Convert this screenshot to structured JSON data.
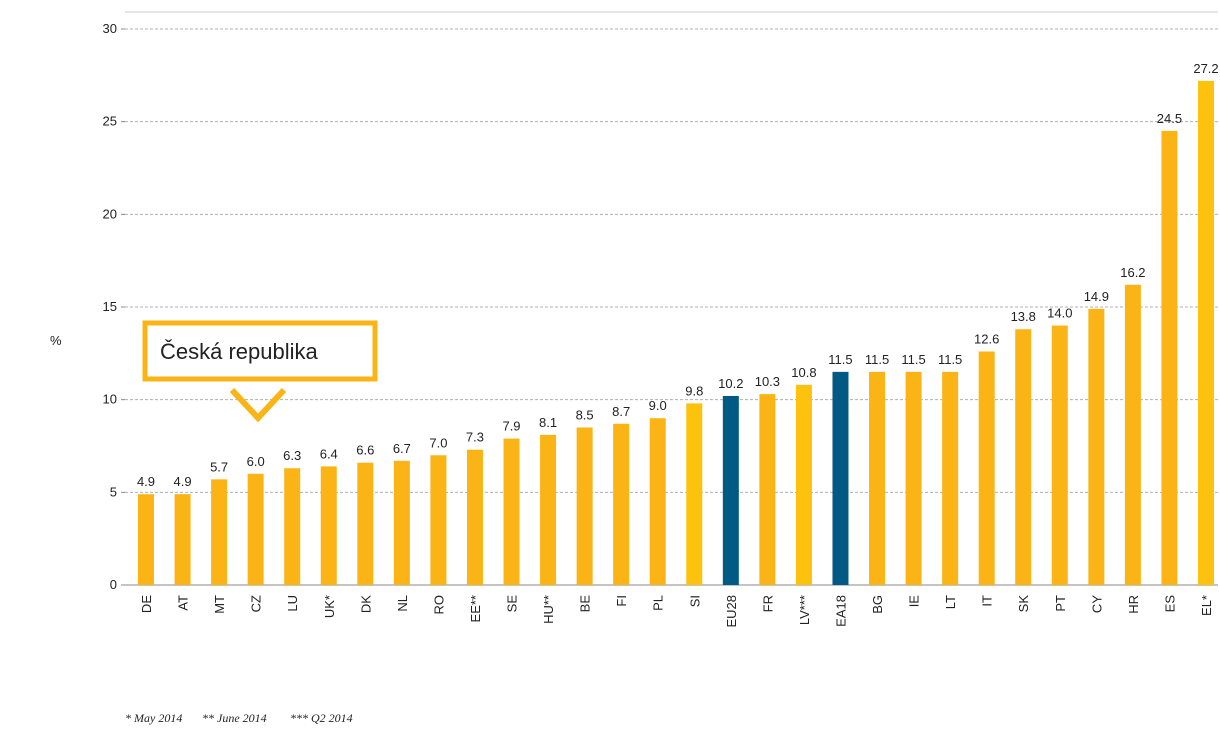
{
  "chart_data": {
    "type": "bar",
    "categories": [
      "DE",
      "AT",
      "MT",
      "CZ",
      "LU",
      "UK*",
      "DK",
      "NL",
      "RO",
      "EE**",
      "SE",
      "HU**",
      "BE",
      "FI",
      "PL",
      "SI",
      "EU28",
      "FR",
      "LV***",
      "EA18",
      "BG",
      "IE",
      "LT",
      "IT",
      "SK",
      "PT",
      "CY",
      "HR",
      "ES",
      "EL*"
    ],
    "values": [
      4.9,
      4.9,
      5.7,
      6.0,
      6.3,
      6.4,
      6.6,
      6.7,
      7.0,
      7.3,
      7.9,
      8.1,
      8.5,
      8.7,
      9.0,
      9.8,
      10.2,
      10.3,
      10.8,
      11.5,
      11.5,
      11.5,
      11.5,
      12.6,
      13.8,
      14.0,
      14.9,
      16.2,
      24.5,
      27.2
    ],
    "value_labels": [
      "4.9",
      "4.9",
      "5.7",
      "6.0",
      "6.3",
      "6.4",
      "6.6",
      "6.7",
      "7.0",
      "7.3",
      "7.9",
      "8.1",
      "8.5",
      "8.7",
      "9.0",
      "9.8",
      "10.2",
      "10.3",
      "10.8",
      "11.5",
      "11.5",
      "11.5",
      "11.5",
      "12.6",
      "13.8",
      "14.0",
      "14.9",
      "16.2",
      "24.5",
      "27.2"
    ],
    "colors": [
      "#fbb415",
      "#fbb415",
      "#fbb415",
      "#fbb415",
      "#fbb415",
      "#fbb415",
      "#fbb415",
      "#fbb415",
      "#fbb415",
      "#fbb415",
      "#fbb415",
      "#fbb415",
      "#fbb415",
      "#fbb415",
      "#fbb415",
      "#fcc20e",
      "#005a84",
      "#fbb415",
      "#fcc20e",
      "#005a84",
      "#fbb415",
      "#fbb415",
      "#fbb415",
      "#fbb415",
      "#fbb415",
      "#fbb415",
      "#fbb415",
      "#fbb415",
      "#fbb415",
      "#fcc20e"
    ],
    "ylabel": "%",
    "ylim": [
      0,
      30
    ],
    "yticks": [
      0,
      5,
      10,
      15,
      20,
      25,
      30
    ],
    "grid": true,
    "annotation": "Česká republika",
    "footnotes": [
      "* May 2014",
      "** June 2014",
      "*** Q2 2014"
    ]
  }
}
